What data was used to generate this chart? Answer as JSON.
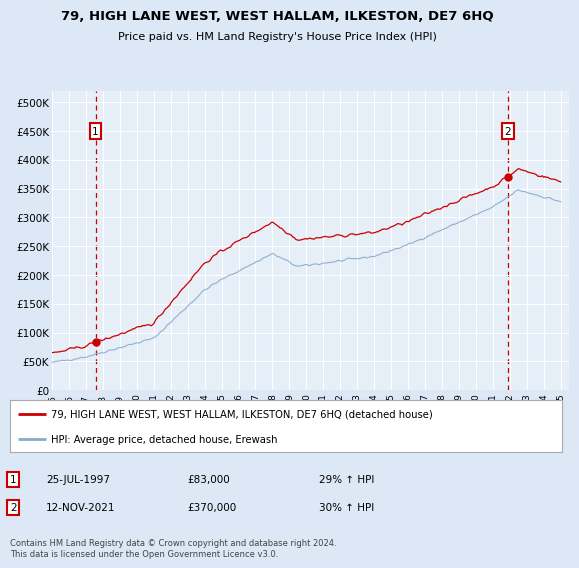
{
  "title": "79, HIGH LANE WEST, WEST HALLAM, ILKESTON, DE7 6HQ",
  "subtitle": "Price paid vs. HM Land Registry's House Price Index (HPI)",
  "bg_color": "#dce8f5",
  "plot_bg_color": "#e6eef8",
  "legend_line1": "79, HIGH LANE WEST, WEST HALLAM, ILKESTON, DE7 6HQ (detached house)",
  "legend_line2": "HPI: Average price, detached house, Erewash",
  "annotation1_date": "25-JUL-1997",
  "annotation1_price": "£83,000",
  "annotation1_hpi": "29% ↑ HPI",
  "annotation2_date": "12-NOV-2021",
  "annotation2_price": "£370,000",
  "annotation2_hpi": "30% ↑ HPI",
  "footnote": "Contains HM Land Registry data © Crown copyright and database right 2024.\nThis data is licensed under the Open Government Licence v3.0.",
  "ylim": [
    0,
    520000
  ],
  "yticks": [
    0,
    50000,
    100000,
    150000,
    200000,
    250000,
    300000,
    350000,
    400000,
    450000,
    500000
  ],
  "ytick_labels": [
    "£0",
    "£50K",
    "£100K",
    "£150K",
    "£200K",
    "£250K",
    "£300K",
    "£350K",
    "£400K",
    "£450K",
    "£500K"
  ],
  "red_color": "#cc0000",
  "blue_color": "#88aacc",
  "sale1_x": 1997.57,
  "sale1_y": 83000,
  "sale2_x": 2021.87,
  "sale2_y": 370000,
  "xmin": 1995.0,
  "xmax": 2025.5
}
